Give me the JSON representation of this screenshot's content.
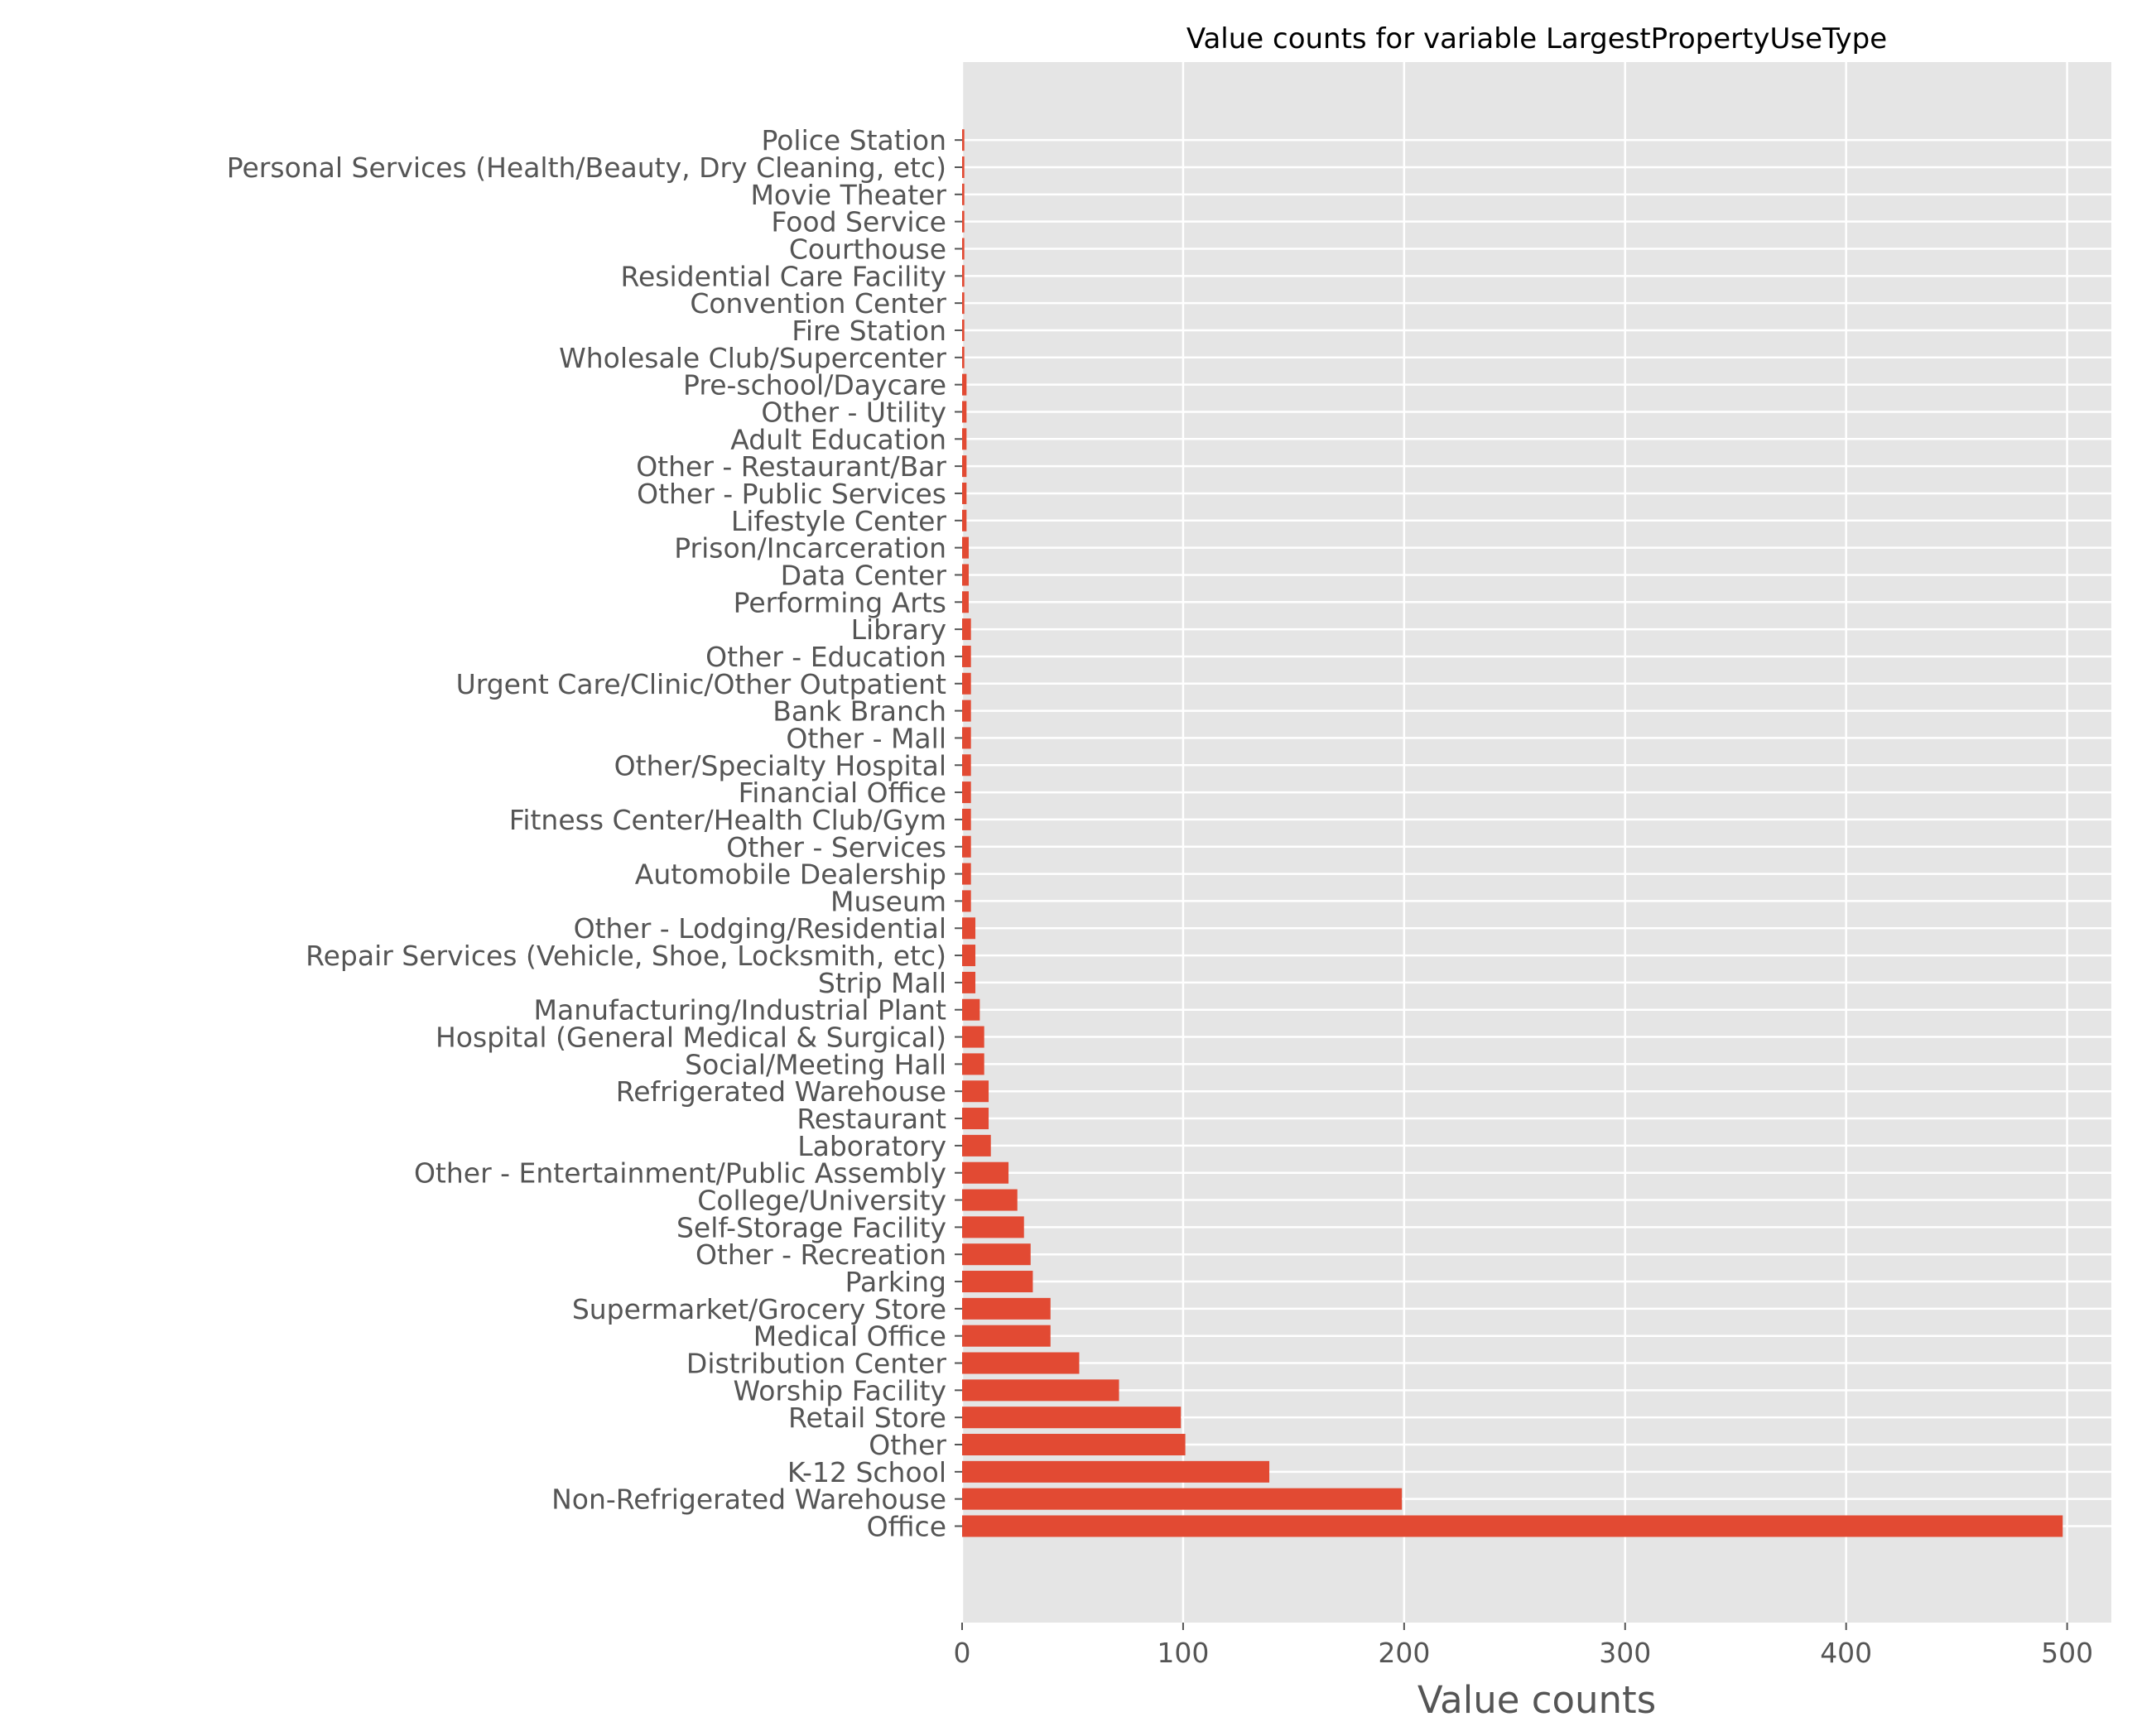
{
  "chart_data": {
    "type": "bar",
    "orientation": "horizontal",
    "title": "Value counts for variable LargestPropertyUseType",
    "xlabel": "Value counts",
    "ylabel": "",
    "xlim": [
      0,
      520
    ],
    "xticks": [
      0,
      100,
      200,
      300,
      400,
      500
    ],
    "grid": true,
    "bar_color": "#E24A33",
    "background_color": "#E5E5E5",
    "categories": [
      "Office",
      "Non-Refrigerated Warehouse",
      "K-12 School",
      "Other",
      "Retail Store",
      "Worship Facility",
      "Distribution Center",
      "Medical Office",
      "Supermarket/Grocery Store",
      "Parking",
      "Other - Recreation",
      "Self-Storage Facility",
      "College/University",
      "Other - Entertainment/Public Assembly",
      "Laboratory",
      "Restaurant",
      "Refrigerated Warehouse",
      "Social/Meeting Hall",
      "Hospital (General Medical & Surgical)",
      "Manufacturing/Industrial Plant",
      "Strip Mall",
      "Repair Services (Vehicle, Shoe, Locksmith, etc)",
      "Other - Lodging/Residential",
      "Museum",
      "Automobile Dealership",
      "Other - Services",
      "Fitness Center/Health Club/Gym",
      "Financial Office",
      "Other/Specialty Hospital",
      "Other - Mall",
      "Bank Branch",
      "Urgent Care/Clinic/Other Outpatient",
      "Other - Education",
      "Library",
      "Performing Arts",
      "Data Center",
      "Prison/Incarceration",
      "Lifestyle Center",
      "Other - Public Services",
      "Other - Restaurant/Bar",
      "Adult Education",
      "Other - Utility",
      "Pre-school/Daycare",
      "Wholesale Club/Supercenter",
      "Fire Station",
      "Convention Center",
      "Residential Care Facility",
      "Courthouse",
      "Food Service",
      "Movie Theater",
      "Personal Services (Health/Beauty, Dry Cleaning, etc)",
      "Police Station"
    ],
    "values": [
      498,
      199,
      139,
      101,
      99,
      71,
      53,
      40,
      40,
      32,
      31,
      28,
      25,
      21,
      13,
      12,
      12,
      10,
      10,
      8,
      6,
      6,
      6,
      4,
      4,
      4,
      4,
      4,
      4,
      4,
      4,
      4,
      4,
      4,
      3,
      3,
      3,
      2,
      2,
      2,
      2,
      2,
      2,
      1,
      1,
      1,
      1,
      1,
      1,
      1,
      1,
      1
    ]
  }
}
